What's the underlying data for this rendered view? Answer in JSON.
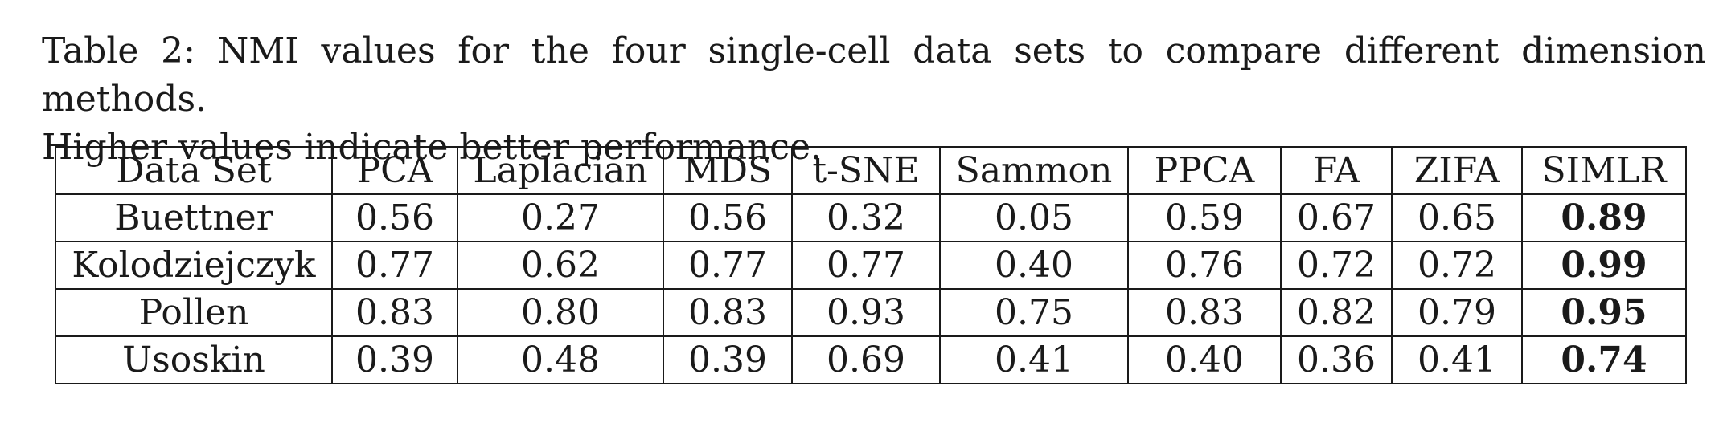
{
  "caption": {
    "line1": "Table 2:  NMI values for the four single-cell data sets to compare different dimension methods.",
    "line2": "Higher values indicate better performance."
  },
  "table": {
    "columns": [
      "Data Set",
      "PCA",
      "Laplacian",
      "MDS",
      "t-SNE",
      "Sammon",
      "PPCA",
      "FA",
      "ZIFA",
      "SIMLR"
    ],
    "rows": [
      {
        "name": "Buettner",
        "values": [
          "0.56",
          "0.27",
          "0.56",
          "0.32",
          "0.05",
          "0.59",
          "0.67",
          "0.65",
          "0.89"
        ]
      },
      {
        "name": "Kolodziejczyk",
        "values": [
          "0.77",
          "0.62",
          "0.77",
          "0.77",
          "0.40",
          "0.76",
          "0.72",
          "0.72",
          "0.99"
        ]
      },
      {
        "name": "Pollen",
        "values": [
          "0.83",
          "0.80",
          "0.83",
          "0.93",
          "0.75",
          "0.83",
          "0.82",
          "0.79",
          "0.95"
        ]
      },
      {
        "name": "Usoskin",
        "values": [
          "0.39",
          "0.48",
          "0.39",
          "0.69",
          "0.41",
          "0.40",
          "0.36",
          "0.41",
          "0.74"
        ]
      }
    ],
    "bold_column": "SIMLR"
  }
}
